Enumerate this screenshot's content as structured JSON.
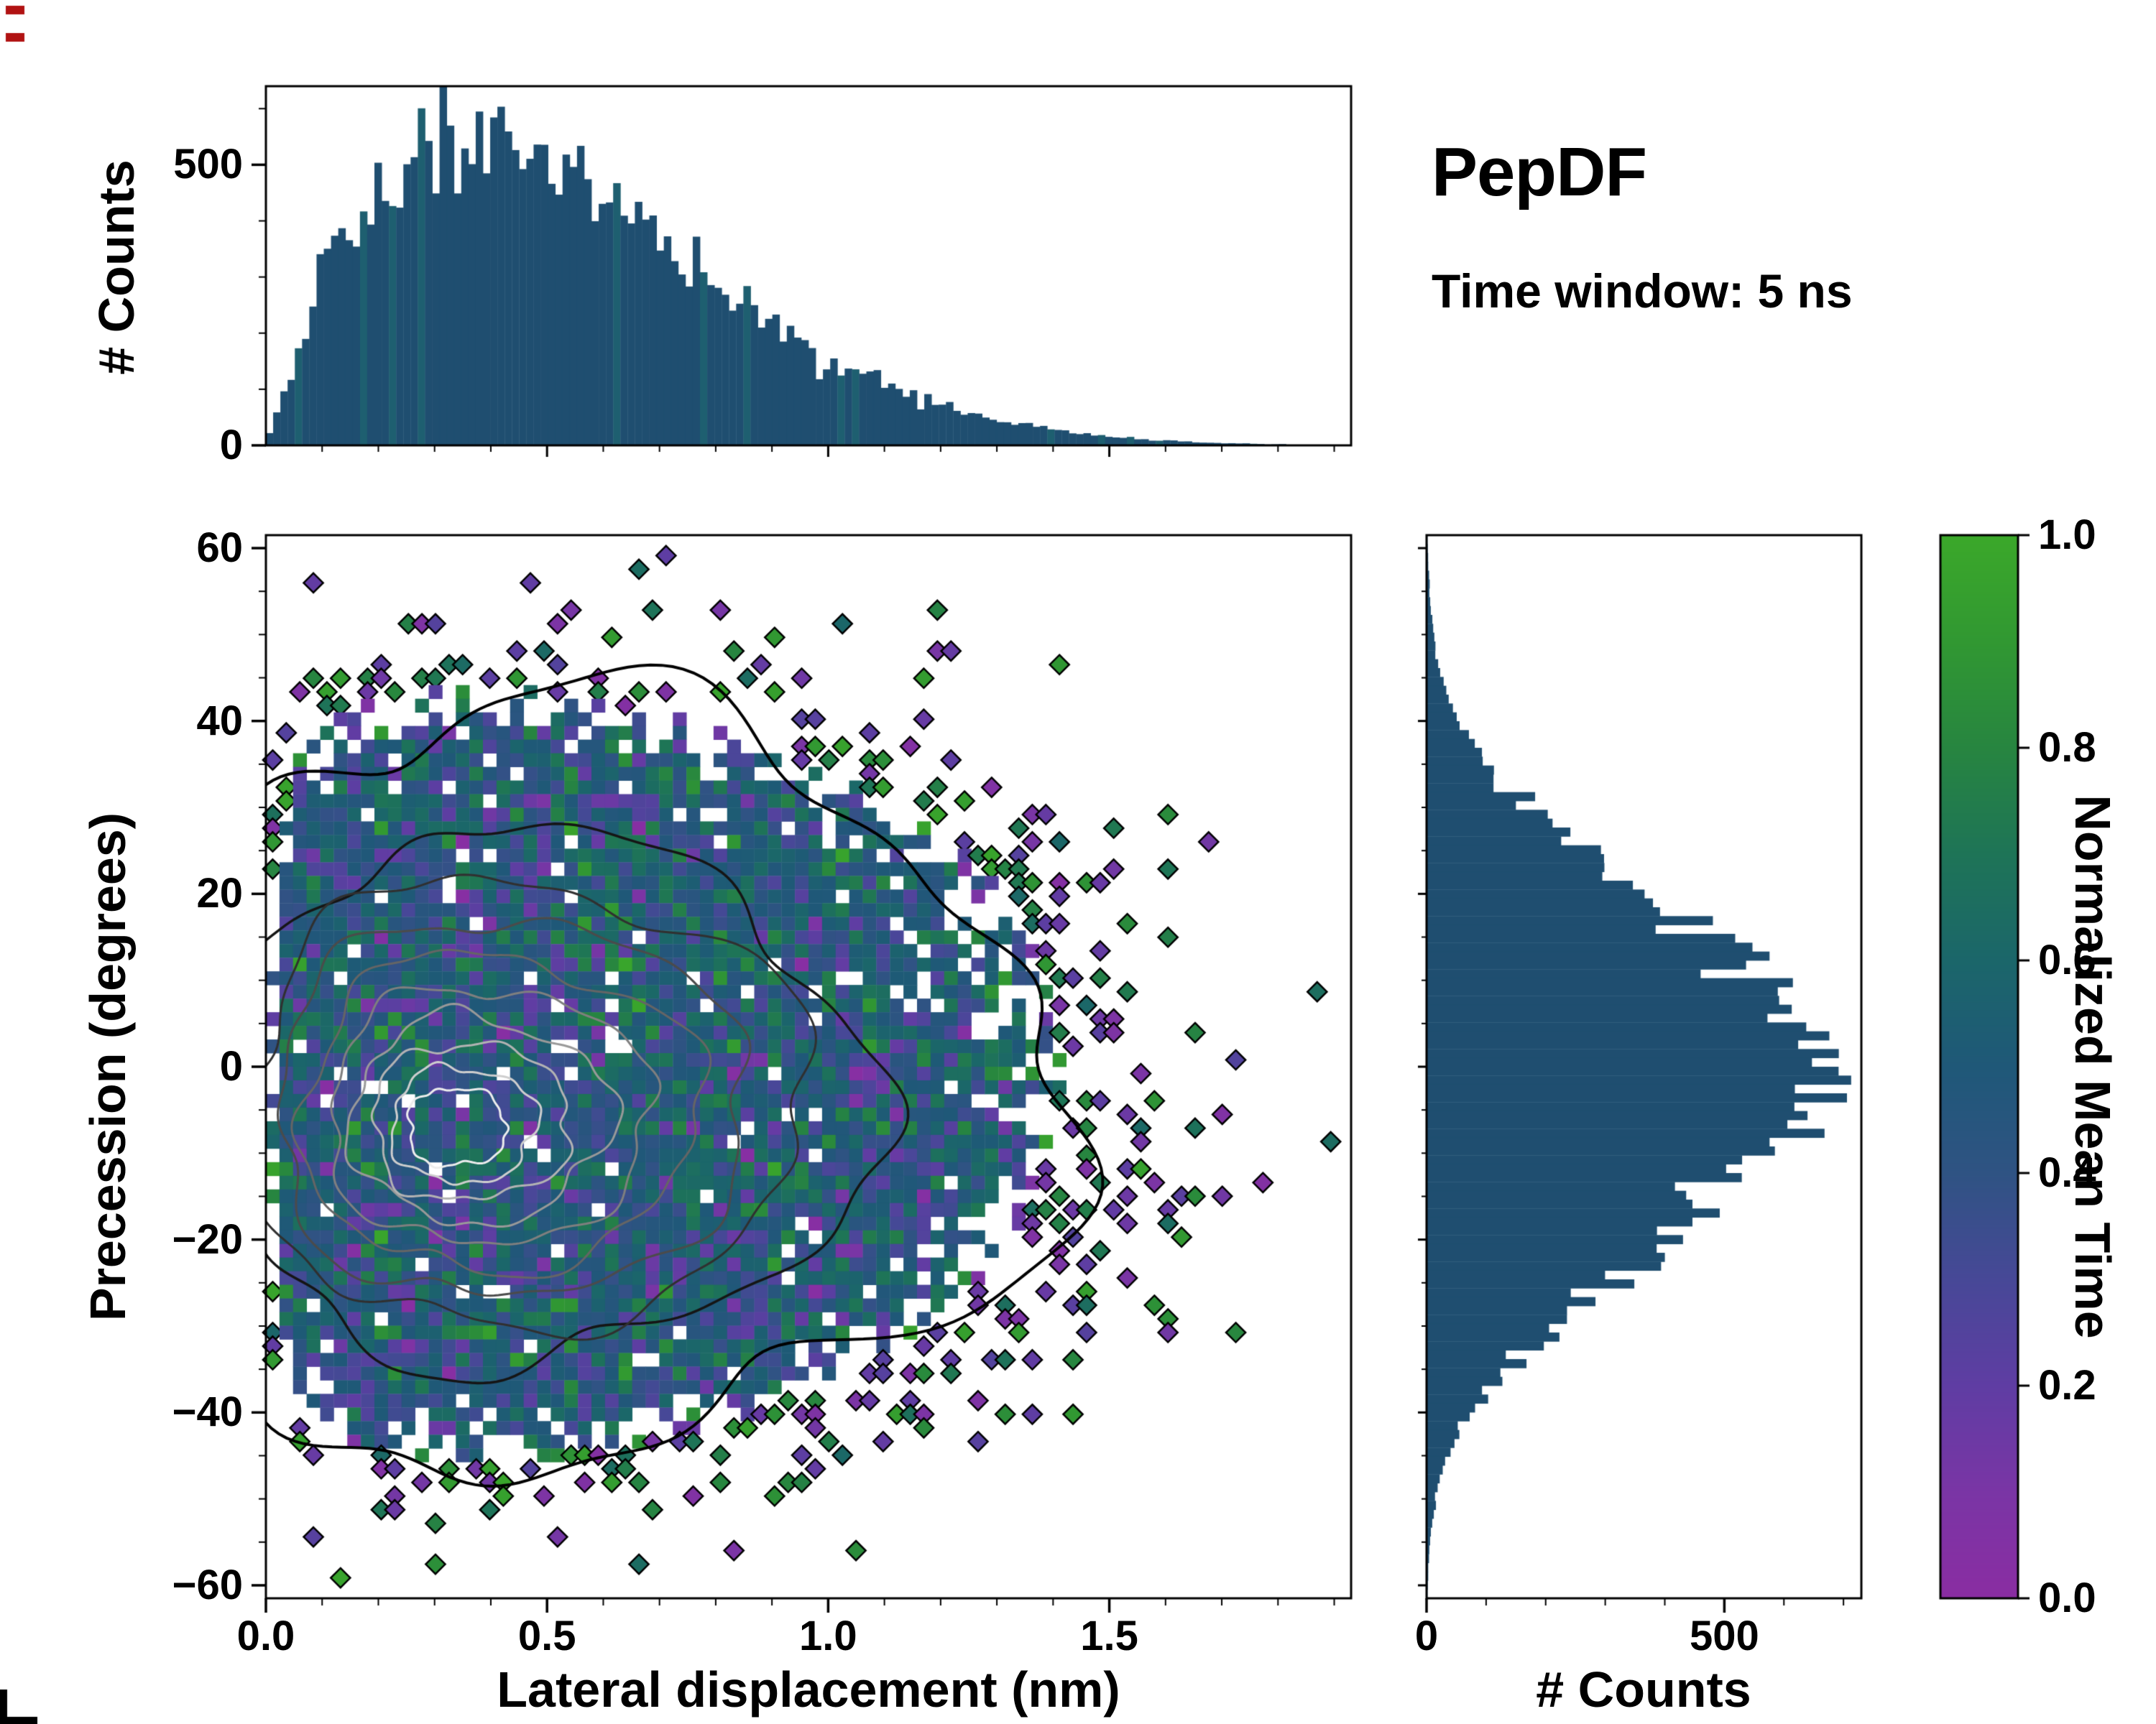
{
  "annotations": {
    "title": "PepDF",
    "subtitle": "Time window: 5 ns"
  },
  "colors": {
    "background": "#ffffff",
    "frame": "#000000",
    "histogram_bar": "#1f4e70"
  },
  "panels": {
    "top_hist": {
      "ylabel": "# Counts",
      "yticks": [
        0,
        500
      ],
      "ytick_labels": [
        "0",
        "500"
      ]
    },
    "main": {
      "xlabel": "Lateral displacement (nm)",
      "ylabel": "Precession (degrees)",
      "xticks": [
        0.0,
        0.5,
        1.0,
        1.5
      ],
      "xtick_labels": [
        "0.0",
        "0.5",
        "1.0",
        "1.5"
      ],
      "yticks": [
        60,
        40,
        20,
        0,
        -20,
        -40,
        -60
      ],
      "ytick_labels": [
        "60",
        "40",
        "20",
        "0",
        "−20",
        "−40",
        "−60"
      ]
    },
    "right_hist": {
      "xlabel": "# Counts",
      "xticks": [
        0,
        500
      ],
      "xtick_labels": [
        "0",
        "500"
      ]
    },
    "colorbar": {
      "label": "Normalized Mean Time",
      "ticks": [
        0.0,
        0.2,
        0.4,
        0.6,
        0.8,
        1.0
      ],
      "tick_labels": [
        "0.0",
        "0.2",
        "0.4",
        "0.6",
        "0.8",
        "1.0"
      ]
    }
  },
  "chart_data": [
    {
      "type": "bar",
      "role": "marginal-histogram-top",
      "xlabel": "Lateral displacement (nm)",
      "ylabel": "# Counts",
      "xlim": [
        0,
        1.93
      ],
      "ylim": [
        0,
        640
      ],
      "n_bins": 150,
      "bar_color": "#1f4e70",
      "envelope_x_nm": [
        0,
        0.03,
        0.06,
        0.1,
        0.14,
        0.18,
        0.22,
        0.26,
        0.3,
        0.34,
        0.38,
        0.42,
        0.46,
        0.5,
        0.55,
        0.6,
        0.65,
        0.7,
        0.75,
        0.8,
        0.85,
        0.9,
        0.95,
        1.0,
        1.05,
        1.1,
        1.15,
        1.2,
        1.25,
        1.3,
        1.35,
        1.4,
        1.45,
        1.5,
        1.55,
        1.6,
        1.65,
        1.7,
        1.75,
        1.8,
        1.85,
        1.93
      ],
      "envelope_counts": [
        5,
        80,
        185,
        300,
        375,
        430,
        470,
        500,
        520,
        560,
        575,
        545,
        525,
        505,
        480,
        445,
        405,
        360,
        320,
        280,
        245,
        210,
        180,
        152,
        128,
        108,
        90,
        74,
        60,
        48,
        38,
        28,
        21,
        16,
        12,
        9,
        6,
        4,
        3,
        2,
        1,
        1
      ]
    },
    {
      "type": "heatmap",
      "role": "joint-distribution-2d-histogram",
      "xlabel": "Lateral displacement (nm)",
      "ylabel": "Precession (degrees)",
      "value_label": "Normalized Mean Time",
      "xlim": [
        0,
        1.93
      ],
      "ylim": [
        -61.5,
        61.5
      ],
      "grid": [
        80,
        78
      ],
      "value_mean": 0.47,
      "value_sd": 0.17,
      "mode": {
        "x_nm": 0.42,
        "y_deg": -3
      },
      "contour_levels": 10,
      "contour_colors_range": [
        "#000000",
        "#ededed"
      ],
      "colormap_stops": [
        {
          "t": 0.0,
          "c": "#8a2da2"
        },
        {
          "t": 0.1,
          "c": "#7a35a5"
        },
        {
          "t": 0.2,
          "c": "#5f3da3"
        },
        {
          "t": 0.3,
          "c": "#474897"
        },
        {
          "t": 0.4,
          "c": "#2f5383"
        },
        {
          "t": 0.5,
          "c": "#1f5878"
        },
        {
          "t": 0.6,
          "c": "#1b666a"
        },
        {
          "t": 0.7,
          "c": "#1e7457"
        },
        {
          "t": 0.8,
          "c": "#278540"
        },
        {
          "t": 0.9,
          "c": "#319832"
        },
        {
          "t": 1.0,
          "c": "#3ba82a"
        }
      ]
    },
    {
      "type": "bar",
      "role": "marginal-histogram-right",
      "orientation": "horizontal",
      "xlabel": "# Counts",
      "ylabel": "Precession (degrees)",
      "xlim": [
        0,
        730
      ],
      "ylim": [
        -61.5,
        61.5
      ],
      "n_bins": 120,
      "bar_color": "#1f4e70",
      "envelope_y_deg": [
        -62,
        -58,
        -54,
        -50,
        -46,
        -42,
        -38,
        -34,
        -30,
        -26,
        -22,
        -18,
        -14,
        -10,
        -6,
        -2,
        0,
        2,
        6,
        10,
        14,
        18,
        22,
        26,
        30,
        34,
        38,
        42,
        46,
        50,
        54,
        58,
        62
      ],
      "envelope_counts": [
        1,
        3,
        7,
        14,
        28,
        55,
        95,
        150,
        215,
        290,
        370,
        450,
        520,
        575,
        620,
        655,
        665,
        650,
        615,
        565,
        500,
        420,
        330,
        245,
        170,
        110,
        68,
        40,
        22,
        12,
        6,
        3,
        1
      ]
    }
  ],
  "artifacts": {
    "top_left_marks_color": "#b11212",
    "bottom_left_mark_color": "#000000"
  }
}
